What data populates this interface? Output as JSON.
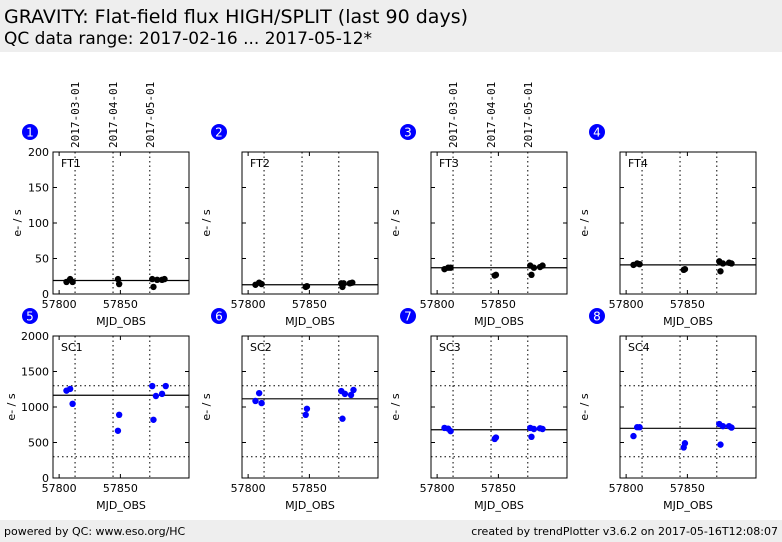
{
  "header": {
    "title": "GRAVITY: Flat-field flux HIGH/SPLIT (last 90 days)",
    "subtitle": "QC data range: 2017-02-16 ... 2017-05-12*"
  },
  "footer": {
    "left": "powered by QC: www.eso.org/HC",
    "right": "created by trendPlotter v3.6.2 on 2017-05-16T12:08:07"
  },
  "colors": {
    "ft": "#000000",
    "sc": "#0000ff",
    "badge": "#0000ff"
  },
  "chart_data": [
    {
      "type": "scatter",
      "panel": "1",
      "label": "FT1",
      "xlabel": "MJD_OBS",
      "ylabel": "e- / s",
      "xlim": [
        57795,
        57906
      ],
      "ylim": [
        0,
        200
      ],
      "xticks": [
        57800,
        57850
      ],
      "yticks": [
        0,
        50,
        100,
        150,
        200
      ],
      "show_ytick_labels": true,
      "date_markers": {
        "mjd": [
          57813,
          57844,
          57874
        ],
        "labels": [
          "2017-03-01",
          "2017-04-01",
          "2017-05-01"
        ],
        "show_labels": true
      },
      "mean": 19,
      "thresholds": [],
      "color": "#000000",
      "x": [
        57806,
        57809,
        57811,
        57848,
        57849,
        57876,
        57877,
        57880,
        57884,
        57886
      ],
      "y": [
        17,
        21,
        17,
        21,
        14,
        21,
        10,
        20,
        20,
        21
      ]
    },
    {
      "type": "scatter",
      "panel": "2",
      "label": "FT2",
      "xlabel": "MJD_OBS",
      "ylabel": "e- / s",
      "xlim": [
        57795,
        57906
      ],
      "ylim": [
        0,
        200
      ],
      "xticks": [
        57800,
        57850
      ],
      "yticks": [
        0,
        50,
        100,
        150,
        200
      ],
      "show_ytick_labels": false,
      "date_markers": {
        "mjd": [
          57813,
          57844,
          57874
        ],
        "labels": [
          "2017-03-01",
          "2017-04-01",
          "2017-05-01"
        ],
        "show_labels": false
      },
      "mean": 13,
      "thresholds": [],
      "color": "#000000",
      "x": [
        57806,
        57809,
        57811,
        57847,
        57848,
        57876,
        57877,
        57878,
        57883,
        57885
      ],
      "y": [
        13,
        16,
        14,
        10,
        11,
        15,
        10,
        15,
        15,
        16
      ]
    },
    {
      "type": "scatter",
      "panel": "3",
      "label": "FT3",
      "xlabel": "MJD_OBS",
      "ylabel": "e- / s",
      "xlim": [
        57795,
        57906
      ],
      "ylim": [
        0,
        200
      ],
      "xticks": [
        57800,
        57850
      ],
      "yticks": [
        0,
        50,
        100,
        150,
        200
      ],
      "show_ytick_labels": false,
      "date_markers": {
        "mjd": [
          57813,
          57844,
          57874
        ],
        "labels": [
          "2017-03-01",
          "2017-04-01",
          "2017-05-01"
        ],
        "show_labels": true
      },
      "mean": 37,
      "thresholds": [],
      "color": "#000000",
      "x": [
        57806,
        57809,
        57811,
        57847,
        57848,
        57876,
        57877,
        57879,
        57884,
        57886
      ],
      "y": [
        35,
        37,
        37,
        26,
        27,
        40,
        27,
        37,
        38,
        40
      ]
    },
    {
      "type": "scatter",
      "panel": "4",
      "label": "FT4",
      "xlabel": "MJD_OBS",
      "ylabel": "e- / s",
      "xlim": [
        57795,
        57906
      ],
      "ylim": [
        0,
        200
      ],
      "xticks": [
        57800,
        57850
      ],
      "yticks": [
        0,
        50,
        100,
        150,
        200
      ],
      "show_ytick_labels": false,
      "date_markers": {
        "mjd": [
          57813,
          57844,
          57874
        ],
        "labels": [
          "2017-03-01",
          "2017-04-01",
          "2017-05-01"
        ],
        "show_labels": false
      },
      "mean": 41,
      "thresholds": [],
      "color": "#000000",
      "x": [
        57806,
        57809,
        57811,
        57847,
        57848,
        57876,
        57877,
        57879,
        57884,
        57886
      ],
      "y": [
        41,
        43,
        42,
        34,
        35,
        46,
        32,
        43,
        44,
        43
      ]
    },
    {
      "type": "scatter",
      "panel": "5",
      "label": "SC1",
      "xlabel": "MJD_OBS",
      "ylabel": "e- / s",
      "xlim": [
        57795,
        57906
      ],
      "ylim": [
        0,
        2000
      ],
      "xticks": [
        57800,
        57850
      ],
      "yticks": [
        0,
        500,
        1000,
        1500,
        2000
      ],
      "show_ytick_labels": true,
      "date_markers": {
        "mjd": [
          57813,
          57844,
          57874
        ],
        "labels": [],
        "show_labels": false
      },
      "mean": 1165,
      "thresholds": [
        300,
        1300
      ],
      "color": "#0000ff",
      "x": [
        57806,
        57809,
        57811,
        57848,
        57849,
        57876,
        57877,
        57879,
        57884,
        57887
      ],
      "y": [
        1230,
        1255,
        1045,
        665,
        890,
        1295,
        820,
        1155,
        1185,
        1295
      ]
    },
    {
      "type": "scatter",
      "panel": "6",
      "label": "SC2",
      "xlabel": "MJD_OBS",
      "ylabel": "e- / s",
      "xlim": [
        57795,
        57906
      ],
      "ylim": [
        0,
        2000
      ],
      "xticks": [
        57800,
        57850
      ],
      "yticks": [
        0,
        500,
        1000,
        1500,
        2000
      ],
      "show_ytick_labels": false,
      "date_markers": {
        "mjd": [
          57813,
          57844,
          57874
        ],
        "labels": [],
        "show_labels": false
      },
      "mean": 1115,
      "thresholds": [
        300,
        1300
      ],
      "color": "#0000ff",
      "x": [
        57806,
        57809,
        57811,
        57847,
        57848,
        57876,
        57877,
        57879,
        57884,
        57886
      ],
      "y": [
        1085,
        1195,
        1055,
        890,
        975,
        1225,
        835,
        1185,
        1170,
        1240
      ]
    },
    {
      "type": "scatter",
      "panel": "7",
      "label": "SC3",
      "xlabel": "MJD_OBS",
      "ylabel": "e- / s",
      "xlim": [
        57795,
        57906
      ],
      "ylim": [
        0,
        2000
      ],
      "xticks": [
        57800,
        57850
      ],
      "yticks": [
        0,
        500,
        1000,
        1500,
        2000
      ],
      "show_ytick_labels": false,
      "date_markers": {
        "mjd": [
          57813,
          57844,
          57874
        ],
        "labels": [],
        "show_labels": false
      },
      "mean": 680,
      "thresholds": [
        300,
        1300
      ],
      "color": "#0000ff",
      "x": [
        57806,
        57809,
        57811,
        57847,
        57848,
        57876,
        57877,
        57879,
        57884,
        57886
      ],
      "y": [
        705,
        695,
        660,
        550,
        570,
        705,
        580,
        690,
        700,
        690
      ]
    },
    {
      "type": "scatter",
      "panel": "8",
      "label": "SC4",
      "xlabel": "MJD_OBS",
      "ylabel": "e- / s",
      "xlim": [
        57795,
        57906
      ],
      "ylim": [
        0,
        2000
      ],
      "xticks": [
        57800,
        57850
      ],
      "yticks": [
        0,
        500,
        1000,
        1500,
        2000
      ],
      "show_ytick_labels": false,
      "date_markers": {
        "mjd": [
          57813,
          57844,
          57874
        ],
        "labels": [],
        "show_labels": false
      },
      "mean": 700,
      "thresholds": [
        300,
        1300
      ],
      "color": "#0000ff",
      "x": [
        57806,
        57809,
        57811,
        57847,
        57848,
        57876,
        57877,
        57879,
        57884,
        57886
      ],
      "y": [
        590,
        715,
        715,
        430,
        490,
        760,
        470,
        730,
        730,
        710
      ]
    }
  ]
}
